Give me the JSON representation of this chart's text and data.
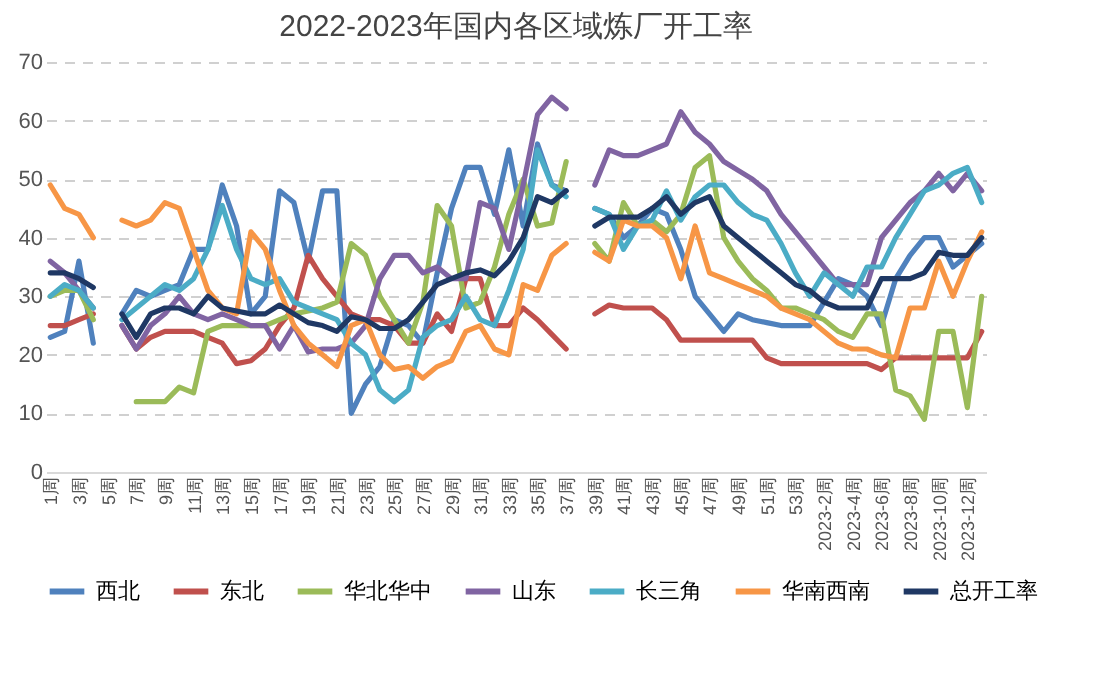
{
  "chart_data": {
    "type": "line",
    "title": "2022-2023年国内各区域炼厂开工率",
    "categories": [
      "1周",
      null,
      "3周",
      null,
      "5周",
      null,
      "7周",
      null,
      "9周",
      null,
      "11周",
      null,
      "13周",
      null,
      "15周",
      null,
      "17周",
      null,
      "19周",
      null,
      "21周",
      null,
      "23周",
      null,
      "25周",
      null,
      "27周",
      null,
      "29周",
      null,
      "31周",
      null,
      "33周",
      null,
      "35周",
      null,
      "37周",
      null,
      "39周",
      null,
      "41周",
      null,
      "43周",
      null,
      "45周",
      null,
      "47周",
      null,
      "49周",
      null,
      "51周",
      null,
      "53周",
      null,
      "2023-2周",
      null,
      "2023-4周",
      null,
      "2023-6周",
      null,
      "2023-8周",
      null,
      "2023-10周",
      null,
      "2023-12周",
      null
    ],
    "ylim": [
      0,
      70
    ],
    "yticks": [
      0,
      10,
      20,
      30,
      40,
      50,
      60,
      70
    ],
    "grid": "y",
    "legend": "bottom",
    "line_style": "solid",
    "series": [
      {
        "name": "西北",
        "color": "#4f81bd",
        "values": [
          23,
          24,
          36,
          22,
          null,
          27,
          31,
          30,
          31,
          32,
          38,
          38,
          49,
          42,
          27,
          30,
          48,
          46,
          36,
          48,
          48,
          10,
          15,
          18,
          26,
          25,
          22,
          34,
          45,
          52,
          52,
          44,
          55,
          42,
          56,
          49,
          48,
          null,
          45,
          44,
          40,
          42,
          45,
          44,
          38,
          30,
          27,
          24,
          27,
          26,
          25.5,
          25,
          25,
          25,
          29,
          33,
          32,
          30,
          25,
          33,
          37,
          40,
          40,
          35,
          37,
          39
        ]
      },
      {
        "name": "东北",
        "color": "#c0504d",
        "values": [
          25,
          25,
          26,
          27,
          null,
          25,
          21,
          23,
          24,
          24,
          24,
          23,
          22,
          18.5,
          19,
          21,
          25,
          28,
          37,
          33,
          30,
          27,
          26,
          26,
          25,
          22,
          22,
          27,
          24,
          33,
          33,
          25,
          25,
          28,
          26,
          23.5,
          21,
          null,
          27,
          28.5,
          28,
          28,
          28,
          26,
          22.5,
          22.5,
          22.5,
          22.5,
          22.5,
          22.5,
          19.5,
          18.5,
          18.5,
          18.5,
          18.5,
          18.5,
          18.5,
          18.5,
          17.5,
          19.5,
          19.5,
          19.5,
          19.5,
          19.5,
          19.5,
          24
        ]
      },
      {
        "name": "华北华中",
        "color": "#9bbb59",
        "values": [
          30,
          31,
          31,
          26,
          null,
          null,
          12,
          12,
          12,
          14.5,
          13.5,
          24,
          25,
          25,
          25,
          25,
          26,
          27,
          27.5,
          28,
          29,
          39,
          37,
          30,
          26,
          22,
          29,
          45.5,
          42,
          28,
          29,
          35,
          44,
          50,
          42,
          42.5,
          53,
          null,
          39,
          36,
          46,
          42,
          43,
          41,
          44,
          52,
          54,
          40,
          36,
          33,
          31,
          28,
          28,
          27,
          26,
          24,
          23,
          27,
          27,
          14,
          13,
          9,
          24,
          24,
          11,
          30
        ]
      },
      {
        "name": "山东",
        "color": "#8064a2",
        "values": [
          36,
          34,
          31,
          28,
          null,
          25,
          21,
          25,
          27,
          30,
          27,
          26,
          27,
          26,
          25,
          25,
          21,
          25,
          20.5,
          21,
          21,
          22,
          25,
          33,
          37,
          37,
          34,
          35,
          33,
          33,
          46,
          45,
          38,
          49,
          61,
          64,
          62,
          null,
          49,
          55,
          54,
          54,
          55,
          56,
          61.5,
          58,
          56,
          53,
          51.5,
          50,
          48,
          44,
          41,
          38,
          35,
          32,
          32,
          32,
          40,
          43,
          46,
          48,
          51,
          48,
          51,
          48
        ]
      },
      {
        "name": "长三角",
        "color": "#4bacc6",
        "values": [
          30,
          32,
          31,
          28,
          null,
          26,
          28,
          30,
          32,
          31,
          33,
          38,
          45.5,
          38,
          33,
          32,
          33,
          29,
          28,
          27,
          26,
          22,
          20,
          14,
          12,
          14,
          23,
          25,
          26,
          30,
          26,
          25,
          31,
          38,
          55,
          49,
          47,
          null,
          45,
          44,
          38,
          42,
          43,
          48,
          43,
          47,
          49,
          49,
          46,
          44,
          43,
          39,
          34,
          30,
          34,
          32,
          30,
          35,
          35,
          40,
          44,
          48,
          49,
          51,
          52,
          46
        ]
      },
      {
        "name": "华南西南",
        "color": "#f79646",
        "values": [
          49,
          45,
          44,
          40,
          null,
          43,
          42,
          43,
          46,
          45,
          38,
          31,
          28,
          27,
          41,
          38,
          31,
          25,
          22,
          20,
          18,
          25,
          26,
          20,
          17.5,
          18,
          16,
          18,
          19,
          24,
          25,
          21,
          20,
          32,
          31,
          37,
          39,
          null,
          37.5,
          36,
          43,
          42,
          42,
          40,
          33,
          42,
          34,
          33,
          32,
          31,
          30,
          28,
          27,
          26,
          24,
          22,
          21,
          21,
          20,
          19.5,
          28,
          28,
          36,
          30,
          36,
          41
        ]
      },
      {
        "name": "总开工率",
        "color": "#1f3864",
        "values": [
          34,
          34,
          33,
          31.5,
          null,
          27,
          23,
          27,
          28,
          28,
          27,
          30,
          28,
          27.5,
          27,
          27,
          28.5,
          27,
          25.5,
          25,
          24,
          26.5,
          26,
          24.5,
          24.5,
          26,
          29,
          32,
          33,
          34,
          34.5,
          33.5,
          36,
          40,
          47,
          46,
          48,
          null,
          42,
          43.5,
          43.5,
          43.5,
          45,
          47,
          44,
          46,
          47,
          42,
          40,
          38,
          36,
          34,
          32,
          31,
          29,
          28,
          28,
          28,
          33,
          33,
          33,
          34,
          37.5,
          37,
          37,
          40
        ]
      }
    ]
  }
}
